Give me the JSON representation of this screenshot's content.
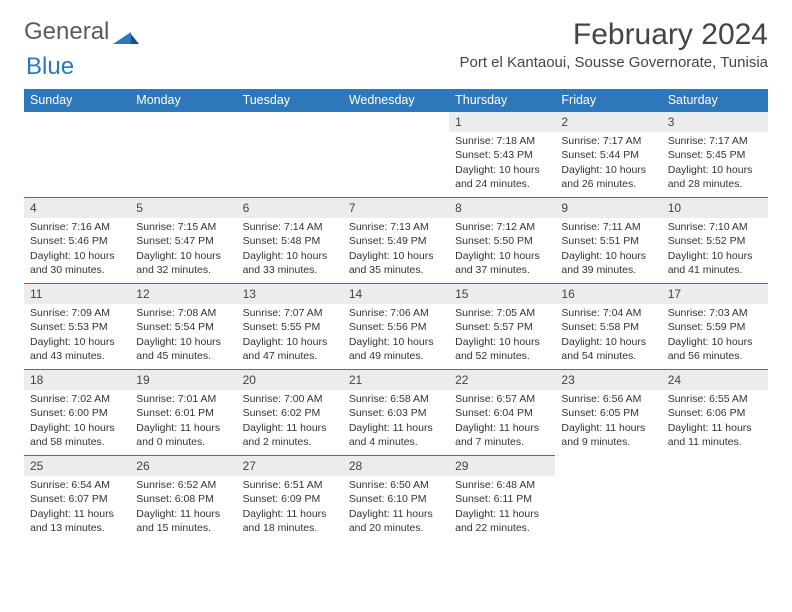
{
  "logo": {
    "text1": "General",
    "text2": "Blue"
  },
  "title": "February 2024",
  "location": "Port el Kantaoui, Sousse Governorate, Tunisia",
  "colors": {
    "header_bg": "#2e77b8",
    "header_text": "#ffffff",
    "daynum_bg": "#ececec",
    "body_text": "#333333",
    "page_bg": "#ffffff"
  },
  "typography": {
    "title_fontsize": 30,
    "location_fontsize": 15,
    "weekday_fontsize": 12.5,
    "cell_fontsize": 10.5
  },
  "weekdays": [
    "Sunday",
    "Monday",
    "Tuesday",
    "Wednesday",
    "Thursday",
    "Friday",
    "Saturday"
  ],
  "weeks": [
    [
      null,
      null,
      null,
      null,
      {
        "n": "1",
        "sr": "7:18 AM",
        "ss": "5:43 PM",
        "dl": "10 hours and 24 minutes."
      },
      {
        "n": "2",
        "sr": "7:17 AM",
        "ss": "5:44 PM",
        "dl": "10 hours and 26 minutes."
      },
      {
        "n": "3",
        "sr": "7:17 AM",
        "ss": "5:45 PM",
        "dl": "10 hours and 28 minutes."
      }
    ],
    [
      {
        "n": "4",
        "sr": "7:16 AM",
        "ss": "5:46 PM",
        "dl": "10 hours and 30 minutes."
      },
      {
        "n": "5",
        "sr": "7:15 AM",
        "ss": "5:47 PM",
        "dl": "10 hours and 32 minutes."
      },
      {
        "n": "6",
        "sr": "7:14 AM",
        "ss": "5:48 PM",
        "dl": "10 hours and 33 minutes."
      },
      {
        "n": "7",
        "sr": "7:13 AM",
        "ss": "5:49 PM",
        "dl": "10 hours and 35 minutes."
      },
      {
        "n": "8",
        "sr": "7:12 AM",
        "ss": "5:50 PM",
        "dl": "10 hours and 37 minutes."
      },
      {
        "n": "9",
        "sr": "7:11 AM",
        "ss": "5:51 PM",
        "dl": "10 hours and 39 minutes."
      },
      {
        "n": "10",
        "sr": "7:10 AM",
        "ss": "5:52 PM",
        "dl": "10 hours and 41 minutes."
      }
    ],
    [
      {
        "n": "11",
        "sr": "7:09 AM",
        "ss": "5:53 PM",
        "dl": "10 hours and 43 minutes."
      },
      {
        "n": "12",
        "sr": "7:08 AM",
        "ss": "5:54 PM",
        "dl": "10 hours and 45 minutes."
      },
      {
        "n": "13",
        "sr": "7:07 AM",
        "ss": "5:55 PM",
        "dl": "10 hours and 47 minutes."
      },
      {
        "n": "14",
        "sr": "7:06 AM",
        "ss": "5:56 PM",
        "dl": "10 hours and 49 minutes."
      },
      {
        "n": "15",
        "sr": "7:05 AM",
        "ss": "5:57 PM",
        "dl": "10 hours and 52 minutes."
      },
      {
        "n": "16",
        "sr": "7:04 AM",
        "ss": "5:58 PM",
        "dl": "10 hours and 54 minutes."
      },
      {
        "n": "17",
        "sr": "7:03 AM",
        "ss": "5:59 PM",
        "dl": "10 hours and 56 minutes."
      }
    ],
    [
      {
        "n": "18",
        "sr": "7:02 AM",
        "ss": "6:00 PM",
        "dl": "10 hours and 58 minutes."
      },
      {
        "n": "19",
        "sr": "7:01 AM",
        "ss": "6:01 PM",
        "dl": "11 hours and 0 minutes."
      },
      {
        "n": "20",
        "sr": "7:00 AM",
        "ss": "6:02 PM",
        "dl": "11 hours and 2 minutes."
      },
      {
        "n": "21",
        "sr": "6:58 AM",
        "ss": "6:03 PM",
        "dl": "11 hours and 4 minutes."
      },
      {
        "n": "22",
        "sr": "6:57 AM",
        "ss": "6:04 PM",
        "dl": "11 hours and 7 minutes."
      },
      {
        "n": "23",
        "sr": "6:56 AM",
        "ss": "6:05 PM",
        "dl": "11 hours and 9 minutes."
      },
      {
        "n": "24",
        "sr": "6:55 AM",
        "ss": "6:06 PM",
        "dl": "11 hours and 11 minutes."
      }
    ],
    [
      {
        "n": "25",
        "sr": "6:54 AM",
        "ss": "6:07 PM",
        "dl": "11 hours and 13 minutes."
      },
      {
        "n": "26",
        "sr": "6:52 AM",
        "ss": "6:08 PM",
        "dl": "11 hours and 15 minutes."
      },
      {
        "n": "27",
        "sr": "6:51 AM",
        "ss": "6:09 PM",
        "dl": "11 hours and 18 minutes."
      },
      {
        "n": "28",
        "sr": "6:50 AM",
        "ss": "6:10 PM",
        "dl": "11 hours and 20 minutes."
      },
      {
        "n": "29",
        "sr": "6:48 AM",
        "ss": "6:11 PM",
        "dl": "11 hours and 22 minutes."
      },
      null,
      null
    ]
  ],
  "labels": {
    "sunrise": "Sunrise:",
    "sunset": "Sunset:",
    "daylight": "Daylight:"
  }
}
